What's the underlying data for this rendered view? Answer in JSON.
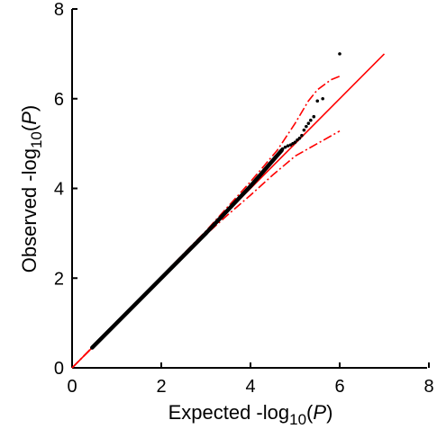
{
  "chart_data": {
    "type": "scatter",
    "title": "",
    "xlabel": {
      "pre": "Expected -log",
      "sub": "10",
      "paren_open": "(",
      "var": "P",
      "paren_close": ")"
    },
    "ylabel": {
      "pre": "Observed -log",
      "sub": "10",
      "paren_open": "(",
      "var": "P",
      "paren_close": ")"
    },
    "xlim": [
      0,
      8
    ],
    "ylim": [
      0,
      8
    ],
    "xticks": [
      "0",
      "2",
      "4",
      "6",
      "8"
    ],
    "yticks": [
      "0",
      "2",
      "4",
      "6",
      "8"
    ],
    "grid": false,
    "colors": {
      "points": "#000000",
      "null_line": "#ff0000",
      "confidence_band": "#ff0000"
    },
    "series": [
      {
        "kind": "points",
        "dense_segments": [
          {
            "x": [
              0.45,
              3.0
            ],
            "y": [
              0.45,
              3.0
            ]
          },
          {
            "x": [
              3.0,
              4.0
            ],
            "y": [
              3.0,
              4.05
            ]
          },
          {
            "x": [
              4.0,
              4.7
            ],
            "y": [
              4.05,
              4.85
            ]
          }
        ],
        "x": [
          4.72,
          4.78,
          4.84,
          4.9,
          4.95,
          5.0,
          5.05,
          5.1,
          5.15,
          5.2,
          5.25,
          5.3,
          5.35,
          5.42,
          5.5,
          5.62,
          6.0
        ],
        "y": [
          4.88,
          4.92,
          4.95,
          4.97,
          5.0,
          5.03,
          5.08,
          5.12,
          5.18,
          5.3,
          5.38,
          5.45,
          5.52,
          5.6,
          5.95,
          6.0,
          7.0
        ]
      },
      {
        "kind": "reference_line",
        "x": [
          0.0,
          7.0
        ],
        "y": [
          0.0,
          7.0
        ]
      },
      {
        "kind": "confidence_upper",
        "x": [
          0.0,
          3.0,
          3.5,
          4.0,
          4.3,
          4.6,
          5.0,
          5.3,
          5.5,
          5.8,
          6.0
        ],
        "y": [
          0.0,
          3.05,
          3.6,
          4.15,
          4.5,
          4.85,
          5.45,
          5.95,
          6.2,
          6.42,
          6.5
        ]
      },
      {
        "kind": "confidence_lower",
        "x": [
          0.0,
          3.0,
          3.5,
          4.0,
          4.5,
          5.0,
          5.5,
          6.0
        ],
        "y": [
          0.0,
          2.97,
          3.42,
          3.85,
          4.3,
          4.72,
          5.0,
          5.28
        ]
      }
    ]
  }
}
